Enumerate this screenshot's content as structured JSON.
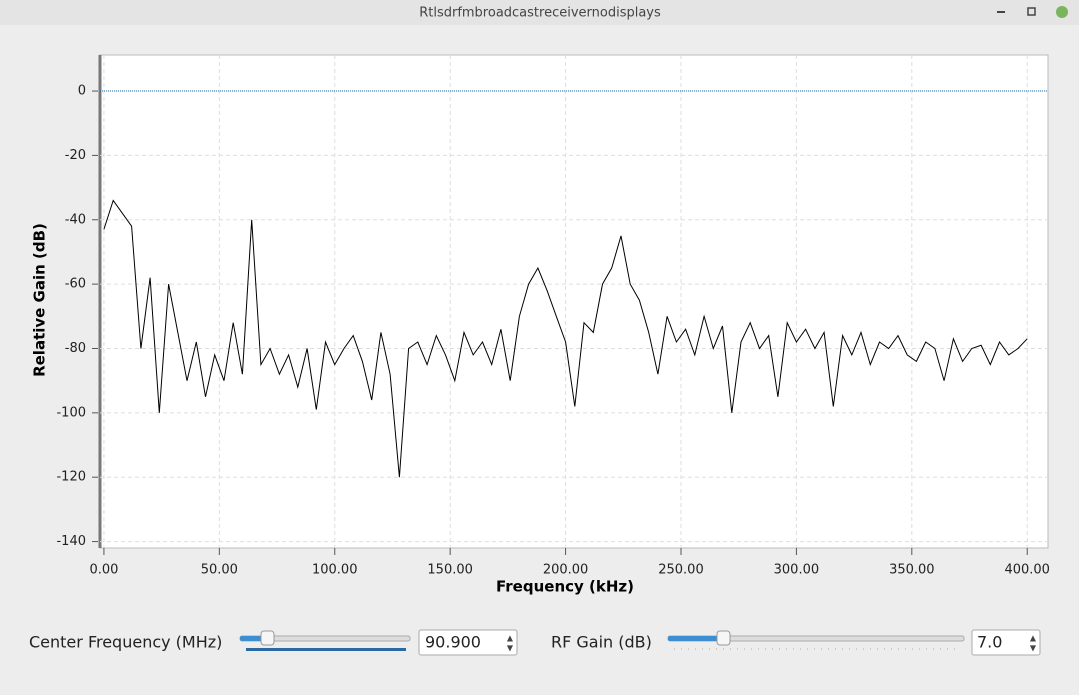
{
  "window": {
    "title": "Rtlsdrfmbroadcastreceivernodisplays"
  },
  "chart_data": {
    "type": "line",
    "x_label": "Frequency (kHz)",
    "y_label": "Relative Gain (dB)",
    "x": [
      0,
      4,
      8,
      12,
      16,
      20,
      24,
      28,
      32,
      36,
      40,
      44,
      48,
      52,
      56,
      60,
      64,
      68,
      72,
      76,
      80,
      84,
      88,
      92,
      96,
      100,
      104,
      108,
      112,
      116,
      120,
      124,
      128,
      132,
      136,
      140,
      144,
      148,
      152,
      156,
      160,
      164,
      168,
      172,
      176,
      180,
      184,
      188,
      192,
      196,
      200,
      204,
      208,
      212,
      216,
      220,
      224,
      228,
      232,
      236,
      240,
      244,
      248,
      252,
      256,
      260,
      264,
      268,
      272,
      276,
      280,
      284,
      288,
      292,
      296,
      300,
      304,
      308,
      312,
      316,
      320,
      324,
      328,
      332,
      336,
      340,
      344,
      348,
      352,
      356,
      360,
      364,
      368,
      372,
      376,
      380,
      384,
      388,
      392,
      396,
      400
    ],
    "series": [
      {
        "color": "#000000",
        "values": [
          -43,
          -34,
          -38,
          -42,
          -80,
          -58,
          -100,
          -60,
          -75,
          -90,
          -78,
          -95,
          -82,
          -90,
          -72,
          -88,
          -40,
          -85,
          -80,
          -88,
          -82,
          -92,
          -80,
          -99,
          -78,
          -85,
          -80,
          -76,
          -84,
          -96,
          -75,
          -88,
          -120,
          -80,
          -78,
          -85,
          -76,
          -82,
          -90,
          -75,
          -82,
          -78,
          -85,
          -74,
          -90,
          -70,
          -60,
          -55,
          -62,
          -70,
          -78,
          -98,
          -72,
          -75,
          -60,
          -55,
          -45,
          -60,
          -65,
          -75,
          -88,
          -70,
          -78,
          -74,
          -82,
          -70,
          -80,
          -73,
          -100,
          -78,
          -72,
          -80,
          -76,
          -95,
          -72,
          -78,
          -74,
          -80,
          -75,
          -98,
          -76,
          -82,
          -75,
          -85,
          -78,
          -80,
          -76,
          -82,
          -84,
          -78,
          -80,
          -90,
          -77,
          -84,
          -80,
          -79,
          -85,
          -78,
          -82,
          -80,
          -77
        ]
      }
    ],
    "reference_line": {
      "value": 0,
      "color": "#1f6fa8"
    },
    "xlim": [
      -1.7,
      409
    ],
    "ylim": [
      -142,
      11.2
    ],
    "xticks": [
      {
        "value": 0,
        "label": "0.00"
      },
      {
        "value": 50,
        "label": "50.00"
      },
      {
        "value": 100,
        "label": "100.00"
      },
      {
        "value": 150,
        "label": "150.00"
      },
      {
        "value": 200,
        "label": "200.00"
      },
      {
        "value": 250,
        "label": "250.00"
      },
      {
        "value": 300,
        "label": "300.00"
      },
      {
        "value": 350,
        "label": "350.00"
      },
      {
        "value": 400,
        "label": "400.00"
      }
    ],
    "yticks": [
      0,
      -20,
      -40,
      -60,
      -80,
      -100,
      -120,
      -140
    ],
    "grid": true
  },
  "controls": [
    {
      "label": "Center Frequency (MHz)",
      "value": "90.900"
    },
    {
      "label": "RF Gain (dB)",
      "value": "7.0"
    }
  ]
}
